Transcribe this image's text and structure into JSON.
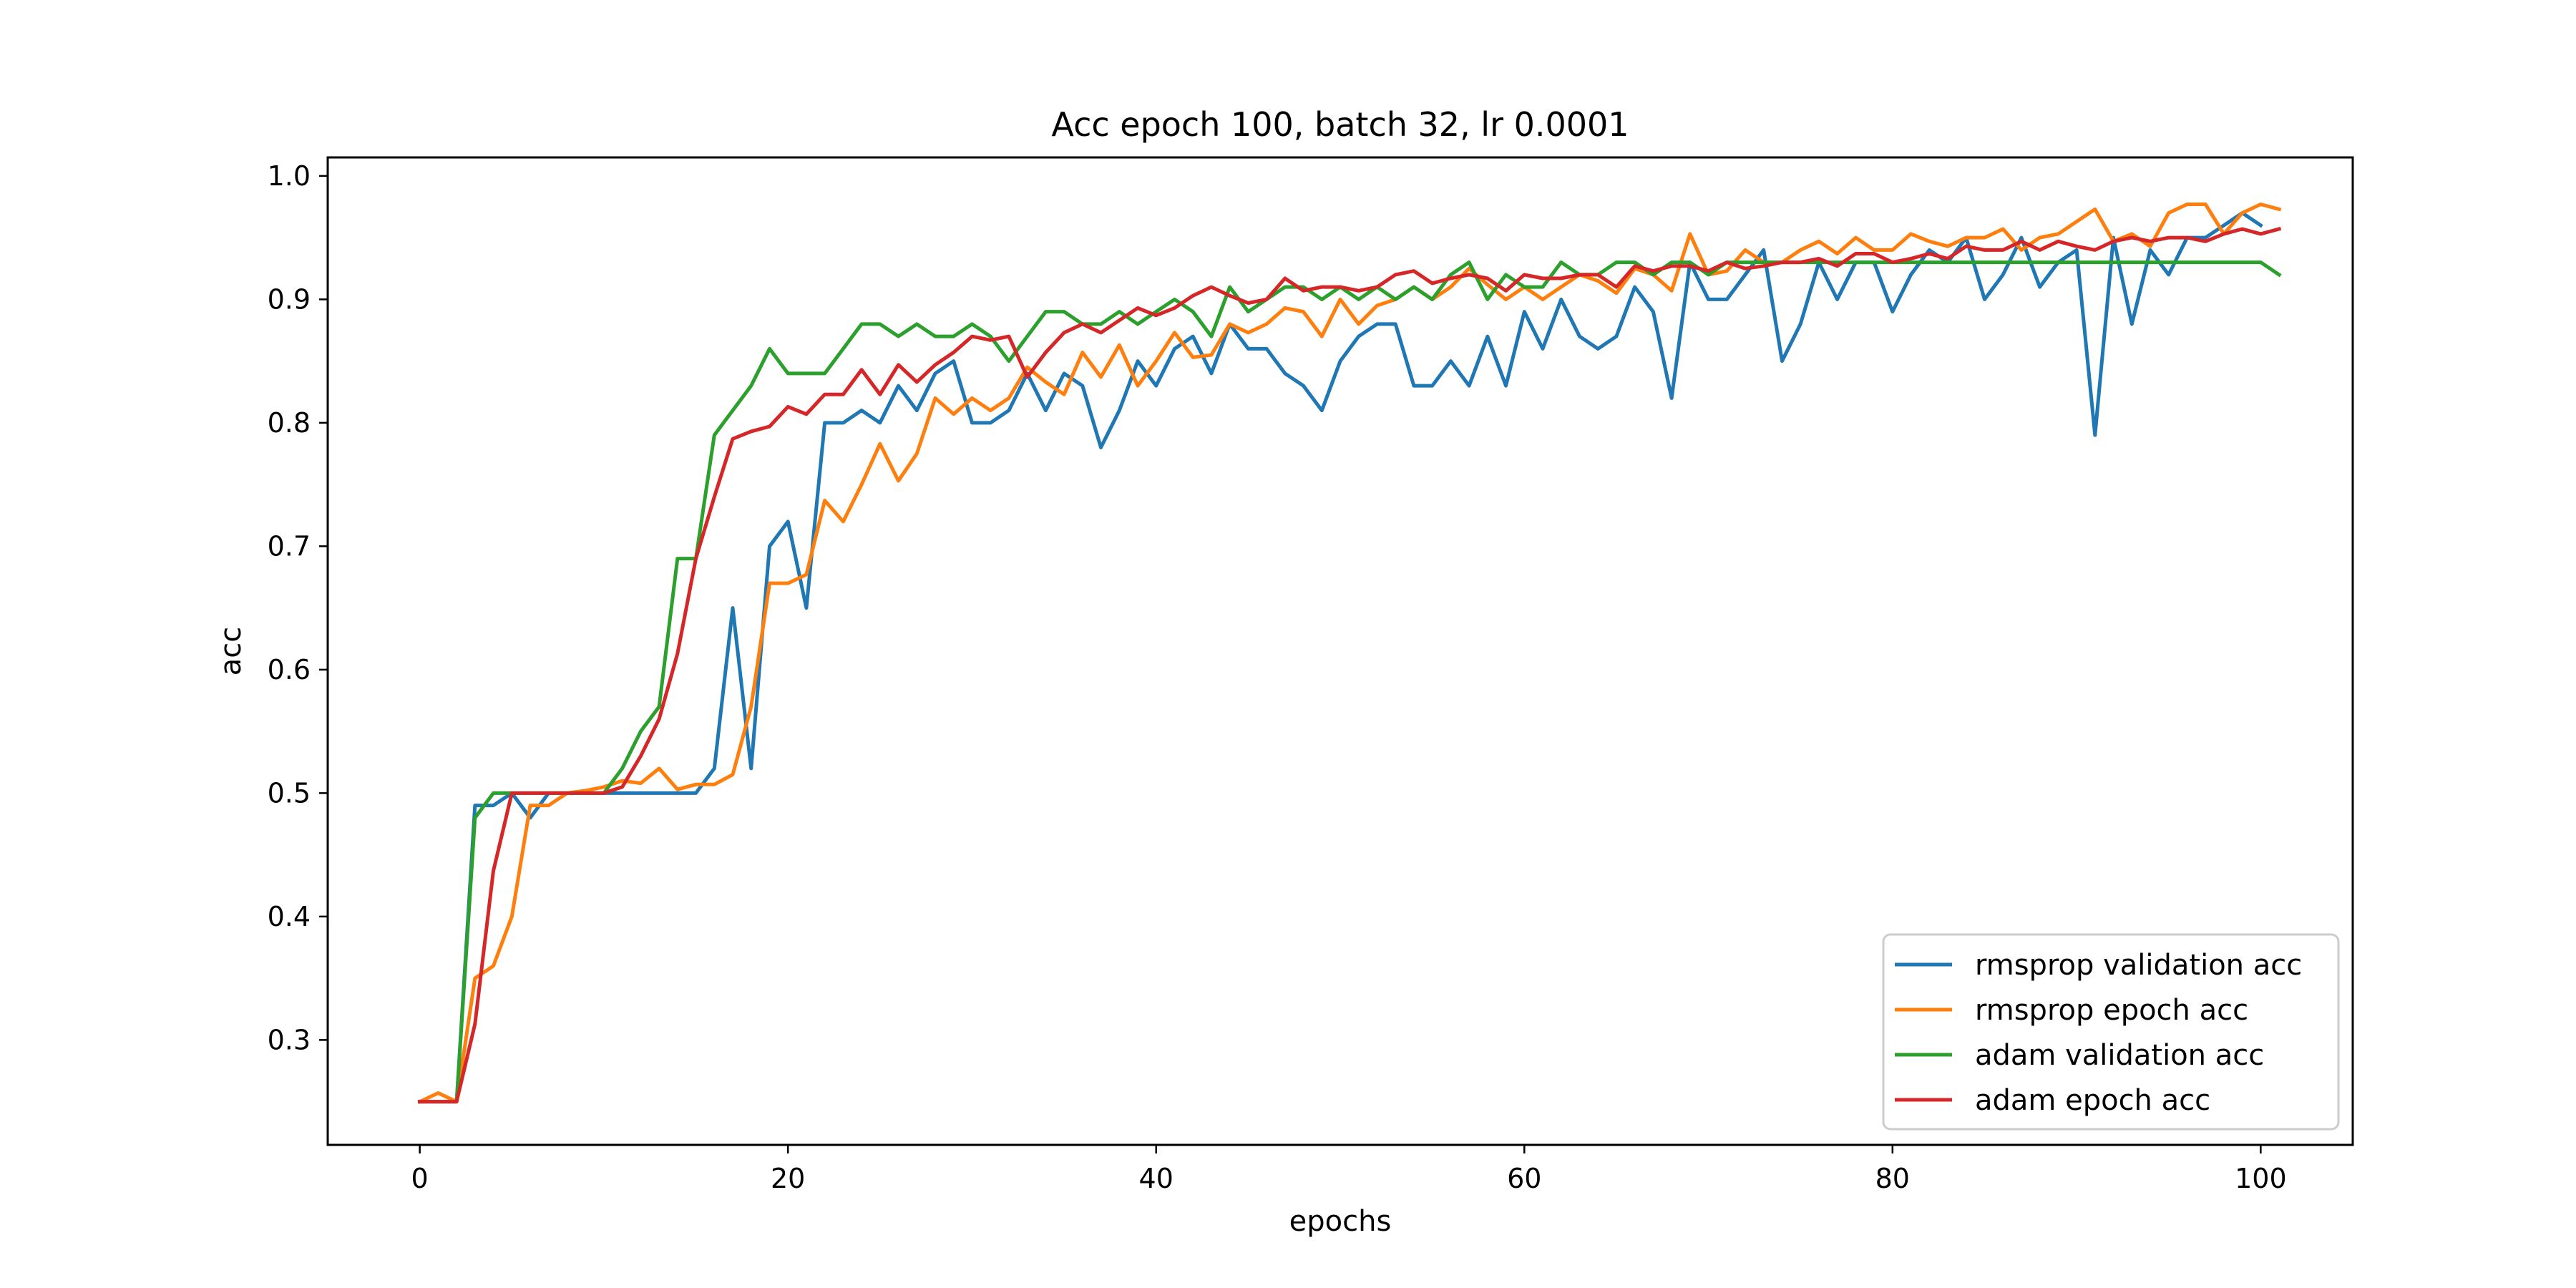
{
  "chart_data": {
    "type": "line",
    "title": "Acc epoch 100, batch 32, lr 0.0001",
    "xlabel": "epochs",
    "ylabel": "acc",
    "xlim": [
      -5,
      105
    ],
    "ylim": [
      0.215,
      1.015
    ],
    "xticks": [
      0,
      20,
      40,
      60,
      80,
      100
    ],
    "yticks": [
      0.3,
      0.4,
      0.5,
      0.6,
      0.7,
      0.8,
      0.9,
      1.0
    ],
    "xtick_labels": [
      "0",
      "20",
      "40",
      "60",
      "80",
      "100"
    ],
    "ytick_labels": [
      "0.3",
      "0.4",
      "0.5",
      "0.6",
      "0.7",
      "0.8",
      "0.9",
      "1.0"
    ],
    "grid": false,
    "legend_position": "bottom-right",
    "series": [
      {
        "name": "rmsprop validation acc",
        "color": "#1f77b4",
        "values": [
          0.25,
          0.25,
          0.25,
          0.49,
          0.49,
          0.5,
          0.48,
          0.5,
          0.5,
          0.5,
          0.5,
          0.5,
          0.5,
          0.5,
          0.5,
          0.5,
          0.52,
          0.65,
          0.52,
          0.7,
          0.72,
          0.65,
          0.8,
          0.8,
          0.81,
          0.8,
          0.83,
          0.81,
          0.84,
          0.85,
          0.8,
          0.8,
          0.81,
          0.84,
          0.81,
          0.84,
          0.83,
          0.78,
          0.81,
          0.85,
          0.83,
          0.86,
          0.87,
          0.84,
          0.88,
          0.86,
          0.86,
          0.84,
          0.83,
          0.81,
          0.85,
          0.87,
          0.88,
          0.88,
          0.83,
          0.83,
          0.85,
          0.83,
          0.87,
          0.83,
          0.89,
          0.86,
          0.9,
          0.87,
          0.86,
          0.87,
          0.91,
          0.89,
          0.82,
          0.93,
          0.9,
          0.9,
          0.92,
          0.94,
          0.85,
          0.88,
          0.93,
          0.9,
          0.93,
          0.93,
          0.89,
          0.92,
          0.94,
          0.93,
          0.95,
          0.9,
          0.92,
          0.95,
          0.91,
          0.93,
          0.94,
          0.79,
          0.95,
          0.88,
          0.94,
          0.92,
          0.95,
          0.95,
          0.96,
          0.97,
          0.96
        ]
      },
      {
        "name": "rmsprop epoch acc",
        "color": "#ff7f0e",
        "values": [
          0.25,
          0.257,
          0.25,
          0.35,
          0.36,
          0.4,
          0.49,
          0.49,
          0.5,
          0.502,
          0.505,
          0.51,
          0.508,
          0.52,
          0.503,
          0.507,
          0.507,
          0.515,
          0.57,
          0.67,
          0.67,
          0.677,
          0.737,
          0.72,
          0.75,
          0.783,
          0.753,
          0.775,
          0.82,
          0.807,
          0.82,
          0.81,
          0.82,
          0.845,
          0.833,
          0.823,
          0.857,
          0.837,
          0.863,
          0.83,
          0.85,
          0.873,
          0.853,
          0.855,
          0.88,
          0.873,
          0.88,
          0.893,
          0.89,
          0.87,
          0.9,
          0.88,
          0.895,
          0.9,
          0.91,
          0.9,
          0.91,
          0.925,
          0.912,
          0.9,
          0.91,
          0.9,
          0.91,
          0.92,
          0.915,
          0.905,
          0.925,
          0.92,
          0.907,
          0.953,
          0.92,
          0.923,
          0.94,
          0.93,
          0.93,
          0.94,
          0.947,
          0.937,
          0.95,
          0.94,
          0.94,
          0.953,
          0.947,
          0.943,
          0.95,
          0.95,
          0.957,
          0.94,
          0.95,
          0.953,
          0.963,
          0.973,
          0.947,
          0.953,
          0.943,
          0.97,
          0.977,
          0.977,
          0.953,
          0.97,
          0.977,
          0.973
        ]
      },
      {
        "name": "adam validation acc",
        "color": "#2ca02c",
        "values": [
          0.25,
          0.25,
          0.25,
          0.48,
          0.5,
          0.5,
          0.5,
          0.5,
          0.5,
          0.5,
          0.5,
          0.52,
          0.55,
          0.57,
          0.69,
          0.69,
          0.79,
          0.81,
          0.83,
          0.86,
          0.84,
          0.84,
          0.84,
          0.86,
          0.88,
          0.88,
          0.87,
          0.88,
          0.87,
          0.87,
          0.88,
          0.87,
          0.85,
          0.87,
          0.89,
          0.89,
          0.88,
          0.88,
          0.89,
          0.88,
          0.89,
          0.9,
          0.89,
          0.87,
          0.91,
          0.89,
          0.9,
          0.91,
          0.91,
          0.9,
          0.91,
          0.9,
          0.91,
          0.9,
          0.91,
          0.9,
          0.92,
          0.93,
          0.9,
          0.92,
          0.91,
          0.91,
          0.93,
          0.92,
          0.92,
          0.93,
          0.93,
          0.92,
          0.93,
          0.93,
          0.92,
          0.93,
          0.93,
          0.93,
          0.93,
          0.93,
          0.93,
          0.93,
          0.93,
          0.93,
          0.93,
          0.93,
          0.93,
          0.93,
          0.93,
          0.93,
          0.93,
          0.93,
          0.93,
          0.93,
          0.93,
          0.93,
          0.93,
          0.93,
          0.93,
          0.93,
          0.93,
          0.93,
          0.93,
          0.93,
          0.93,
          0.92
        ]
      },
      {
        "name": "adam epoch acc",
        "color": "#d62728",
        "values": [
          0.25,
          0.25,
          0.25,
          0.313,
          0.437,
          0.5,
          0.5,
          0.5,
          0.5,
          0.5,
          0.5,
          0.505,
          0.53,
          0.56,
          0.613,
          0.69,
          0.74,
          0.787,
          0.793,
          0.797,
          0.813,
          0.807,
          0.823,
          0.823,
          0.843,
          0.823,
          0.847,
          0.833,
          0.847,
          0.857,
          0.87,
          0.867,
          0.87,
          0.837,
          0.857,
          0.873,
          0.88,
          0.873,
          0.883,
          0.893,
          0.887,
          0.893,
          0.903,
          0.91,
          0.903,
          0.897,
          0.9,
          0.917,
          0.907,
          0.91,
          0.91,
          0.907,
          0.91,
          0.92,
          0.923,
          0.913,
          0.917,
          0.92,
          0.917,
          0.907,
          0.92,
          0.917,
          0.917,
          0.92,
          0.92,
          0.91,
          0.927,
          0.923,
          0.927,
          0.927,
          0.923,
          0.93,
          0.925,
          0.927,
          0.93,
          0.93,
          0.933,
          0.927,
          0.937,
          0.937,
          0.93,
          0.933,
          0.937,
          0.933,
          0.943,
          0.94,
          0.94,
          0.947,
          0.94,
          0.947,
          0.943,
          0.94,
          0.947,
          0.95,
          0.947,
          0.95,
          0.95,
          0.947,
          0.953,
          0.957,
          0.953,
          0.957
        ]
      }
    ]
  }
}
